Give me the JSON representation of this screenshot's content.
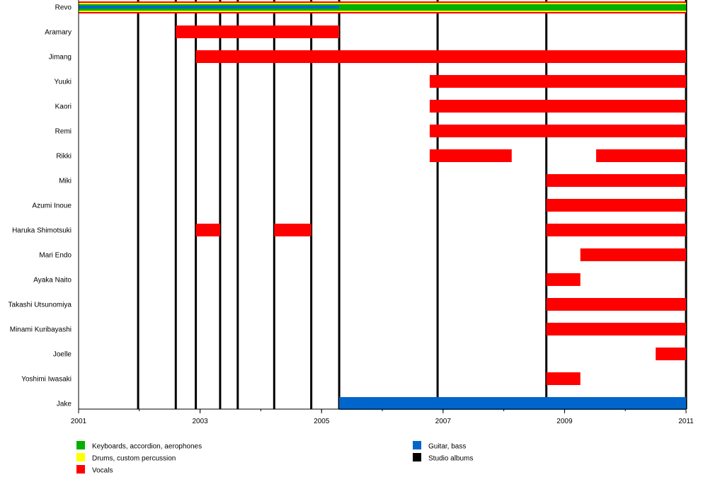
{
  "chart_data": {
    "type": "timeline",
    "xlim": [
      2001,
      2011
    ],
    "x_ticks_major": [
      2001,
      2003,
      2005,
      2007,
      2009,
      2011
    ],
    "x_ticks_minor_step": 1,
    "colors": {
      "keyboards": "#00b000",
      "drums": "#ffff00",
      "vocals": "#ff0000",
      "guitar": "#0066cc",
      "albums": "#000000"
    },
    "legend": [
      {
        "key": "keyboards",
        "label": "Keyboards, accordion, aerophones"
      },
      {
        "key": "drums",
        "label": "Drums, custom percussion"
      },
      {
        "key": "vocals",
        "label": "Vocals"
      },
      {
        "key": "guitar",
        "label": "Guitar, bass"
      },
      {
        "key": "albums",
        "label": "Studio albums"
      }
    ],
    "studio_albums": [
      2001.98,
      2002.6,
      2002.93,
      2003.33,
      2003.62,
      2004.22,
      2004.83,
      2005.29,
      2006.91,
      2008.7,
      2011.0
    ],
    "members": [
      {
        "name": "Revo",
        "bars": [
          {
            "role": "vocals",
            "from": 2001,
            "to": 2011,
            "layer": 0
          },
          {
            "role": "drums",
            "from": 2001,
            "to": 2011,
            "layer": 1
          },
          {
            "role": "keyboards",
            "from": 2001,
            "to": 2011,
            "layer": 2
          },
          {
            "role": "guitar",
            "from": 2001,
            "to": 2005.29,
            "layer": 3
          }
        ]
      },
      {
        "name": "Aramary",
        "bars": [
          {
            "role": "vocals",
            "from": 2002.6,
            "to": 2005.29
          }
        ]
      },
      {
        "name": "Jimang",
        "bars": [
          {
            "role": "vocals",
            "from": 2002.93,
            "to": 2011
          }
        ]
      },
      {
        "name": "Yuuki",
        "bars": [
          {
            "role": "vocals",
            "from": 2006.78,
            "to": 2011
          }
        ]
      },
      {
        "name": "Kaori",
        "bars": [
          {
            "role": "vocals",
            "from": 2006.78,
            "to": 2011
          }
        ]
      },
      {
        "name": "Remi",
        "bars": [
          {
            "role": "vocals",
            "from": 2006.78,
            "to": 2011
          }
        ]
      },
      {
        "name": "Rikki",
        "bars": [
          {
            "role": "vocals",
            "from": 2006.78,
            "to": 2008.13
          },
          {
            "role": "vocals",
            "from": 2009.52,
            "to": 2011
          }
        ]
      },
      {
        "name": "Miki",
        "bars": [
          {
            "role": "vocals",
            "from": 2008.7,
            "to": 2011
          }
        ]
      },
      {
        "name": "Azumi Inoue",
        "bars": [
          {
            "role": "vocals",
            "from": 2008.7,
            "to": 2011
          }
        ]
      },
      {
        "name": "Haruka Shimotsuki",
        "bars": [
          {
            "role": "vocals",
            "from": 2002.93,
            "to": 2003.33
          },
          {
            "role": "vocals",
            "from": 2004.22,
            "to": 2004.83
          },
          {
            "role": "vocals",
            "from": 2008.7,
            "to": 2011
          }
        ]
      },
      {
        "name": "Mari Endo",
        "bars": [
          {
            "role": "vocals",
            "from": 2009.26,
            "to": 2011
          }
        ]
      },
      {
        "name": "Ayaka Naito",
        "bars": [
          {
            "role": "vocals",
            "from": 2008.7,
            "to": 2009.26
          }
        ]
      },
      {
        "name": "Takashi Utsunomiya",
        "bars": [
          {
            "role": "vocals",
            "from": 2008.7,
            "to": 2011
          }
        ]
      },
      {
        "name": "Minami Kuribayashi",
        "bars": [
          {
            "role": "vocals",
            "from": 2008.7,
            "to": 2011
          }
        ]
      },
      {
        "name": "Joelle",
        "bars": [
          {
            "role": "vocals",
            "from": 2010.5,
            "to": 2011
          }
        ]
      },
      {
        "name": "Yoshimi Iwasaki",
        "bars": [
          {
            "role": "vocals",
            "from": 2008.7,
            "to": 2009.26
          }
        ]
      },
      {
        "name": "Jake",
        "bars": [
          {
            "role": "guitar",
            "from": 2005.29,
            "to": 2011
          }
        ]
      }
    ]
  }
}
